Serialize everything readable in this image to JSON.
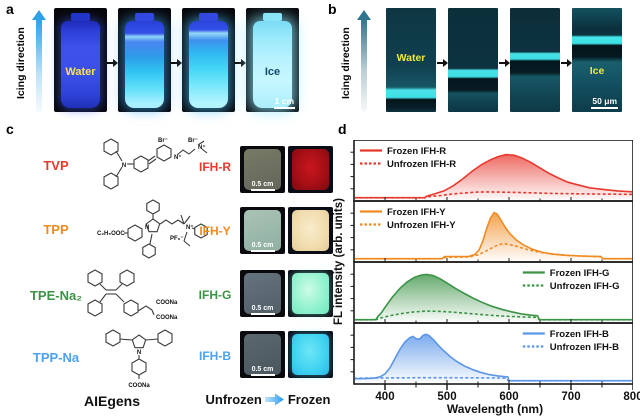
{
  "panels": {
    "a": {
      "panel_label": "a",
      "direction_label": "Icing direction",
      "water_label": "Water",
      "ice_label": "Ice",
      "scale_bar": "1 cm"
    },
    "b": {
      "panel_label": "b",
      "direction_label": "Icing direction",
      "water_label": "Water",
      "ice_label": "Ice",
      "scale_bar": "50 μm"
    },
    "c": {
      "panel_label": "c",
      "rows": [
        {
          "aiegen": "TVP",
          "ifh": "IFH-R",
          "color": "#e8392f",
          "ann": [
            "N",
            "Br⁻",
            "N⁺",
            "Br⁻",
            "N⁺"
          ],
          "scale_bar": "0.5 cm"
        },
        {
          "aiegen": "TPP",
          "ifh": "IFH-Y",
          "color": "#f08b22",
          "ann": [
            "C₂H₅OOC",
            "N",
            "PF₆⁻",
            "N⁺"
          ],
          "scale_bar": "0.5 cm"
        },
        {
          "aiegen": "TPE-Na₂",
          "ifh": "IFH-G",
          "color": "#3b9346",
          "ann": [
            "COONa",
            "COONa"
          ],
          "scale_bar": "0.5 cm"
        },
        {
          "aiegen": "TPP-Na",
          "ifh": "IFH-B",
          "color": "#4da2f0",
          "ann": [
            "N",
            "COONa"
          ],
          "scale_bar": "0.5 cm"
        }
      ],
      "aiegens_label": "AIEgens",
      "unfrozen_label": "Unfrozen",
      "frozen_label": "Frozen"
    },
    "d": {
      "panel_label": "d",
      "ylabel": "FL intensity (arb. units)",
      "xlabel": "Wavelength (nm)"
    }
  },
  "chart_data": {
    "type": "line",
    "xlabel": "Wavelength (nm)",
    "ylabel": "FL intensity (arb. units)",
    "x_range": [
      350,
      800
    ],
    "xticks": [
      400,
      500,
      600,
      700,
      800
    ],
    "grid": false,
    "subplots": [
      {
        "color": "#e8392f",
        "legend_pos": "left",
        "peak_nm": 600,
        "series": [
          {
            "name": "Frozen IFH-R",
            "style": "solid",
            "fill": true,
            "points": [
              [
                350,
                0.005
              ],
              [
                464,
                0.005
              ],
              [
                468,
                0.04
              ],
              [
                480,
                0.08
              ],
              [
                495,
                0.14
              ],
              [
                510,
                0.24
              ],
              [
                525,
                0.37
              ],
              [
                540,
                0.52
              ],
              [
                555,
                0.65
              ],
              [
                570,
                0.75
              ],
              [
                582,
                0.81
              ],
              [
                595,
                0.85
              ],
              [
                608,
                0.84
              ],
              [
                620,
                0.79
              ],
              [
                635,
                0.7
              ],
              [
                650,
                0.59
              ],
              [
                665,
                0.48
              ],
              [
                680,
                0.39
              ],
              [
                695,
                0.31
              ],
              [
                710,
                0.26
              ],
              [
                730,
                0.2
              ],
              [
                750,
                0.17
              ],
              [
                775,
                0.14
              ],
              [
                800,
                0.12
              ]
            ]
          },
          {
            "name": "Unfrozen IFH-R",
            "style": "dashed",
            "fill": false,
            "points": [
              [
                350,
                0.004
              ],
              [
                464,
                0.004
              ],
              [
                470,
                0.025
              ],
              [
                490,
                0.05
              ],
              [
                510,
                0.08
              ],
              [
                530,
                0.1
              ],
              [
                548,
                0.115
              ],
              [
                565,
                0.12
              ],
              [
                585,
                0.115
              ],
              [
                610,
                0.11
              ],
              [
                640,
                0.1
              ],
              [
                670,
                0.09
              ],
              [
                700,
                0.085
              ],
              [
                740,
                0.078
              ],
              [
                800,
                0.07
              ]
            ]
          }
        ]
      },
      {
        "color": "#f08b22",
        "legend_pos": "left",
        "peak_nm": 577,
        "series": [
          {
            "name": "Frozen IFH-Y",
            "style": "solid",
            "fill": true,
            "points": [
              [
                350,
                0.005
              ],
              [
                492,
                0.005
              ],
              [
                496,
                0.05
              ],
              [
                535,
                0.05
              ],
              [
                545,
                0.09
              ],
              [
                552,
                0.18
              ],
              [
                558,
                0.36
              ],
              [
                564,
                0.6
              ],
              [
                570,
                0.8
              ],
              [
                576,
                0.91
              ],
              [
                581,
                0.88
              ],
              [
                587,
                0.76
              ],
              [
                594,
                0.62
              ],
              [
                602,
                0.49
              ],
              [
                612,
                0.37
              ],
              [
                624,
                0.27
              ],
              [
                638,
                0.19
              ],
              [
                654,
                0.13
              ],
              [
                672,
                0.095
              ],
              [
                692,
                0.072
              ],
              [
                715,
                0.058
              ],
              [
                748,
                0.048
              ],
              [
                752,
                0.005
              ],
              [
                800,
                0.005
              ]
            ]
          },
          {
            "name": "Unfrozen IFH-Y",
            "style": "dashed",
            "fill": false,
            "points": [
              [
                350,
                0.004
              ],
              [
                492,
                0.004
              ],
              [
                498,
                0.035
              ],
              [
                535,
                0.04
              ],
              [
                550,
                0.08
              ],
              [
                562,
                0.15
              ],
              [
                574,
                0.23
              ],
              [
                584,
                0.285
              ],
              [
                592,
                0.3
              ],
              [
                602,
                0.28
              ],
              [
                615,
                0.24
              ],
              [
                630,
                0.185
              ],
              [
                648,
                0.135
              ],
              [
                668,
                0.1
              ],
              [
                690,
                0.075
              ],
              [
                715,
                0.058
              ],
              [
                748,
                0.045
              ],
              [
                752,
                0.004
              ],
              [
                800,
                0.004
              ]
            ]
          }
        ]
      },
      {
        "color": "#3b9346",
        "legend_pos": "right",
        "peak_nm": 465,
        "series": [
          {
            "name": "Frozen IFH-G",
            "style": "solid",
            "fill": true,
            "points": [
              [
                350,
                0.005
              ],
              [
                385,
                0.005
              ],
              [
                388,
                0.06
              ],
              [
                394,
                0.14
              ],
              [
                402,
                0.28
              ],
              [
                412,
                0.45
              ],
              [
                424,
                0.62
              ],
              [
                436,
                0.75
              ],
              [
                448,
                0.84
              ],
              [
                458,
                0.88
              ],
              [
                467,
                0.895
              ],
              [
                478,
                0.87
              ],
              [
                490,
                0.8
              ],
              [
                502,
                0.71
              ],
              [
                515,
                0.61
              ],
              [
                528,
                0.52
              ],
              [
                542,
                0.43
              ],
              [
                556,
                0.35
              ],
              [
                572,
                0.27
              ],
              [
                588,
                0.21
              ],
              [
                604,
                0.16
              ],
              [
                620,
                0.12
              ],
              [
                636,
                0.095
              ],
              [
                646,
                0.085
              ],
              [
                649,
                0.005
              ],
              [
                800,
                0.005
              ]
            ]
          },
          {
            "name": "Unfrozen IFH-G",
            "style": "dashed",
            "fill": false,
            "points": [
              [
                350,
                0.004
              ],
              [
                385,
                0.004
              ],
              [
                390,
                0.03
              ],
              [
                400,
                0.06
              ],
              [
                412,
                0.095
              ],
              [
                428,
                0.13
              ],
              [
                444,
                0.155
              ],
              [
                460,
                0.17
              ],
              [
                474,
                0.175
              ],
              [
                490,
                0.168
              ],
              [
                508,
                0.155
              ],
              [
                526,
                0.138
              ],
              [
                545,
                0.118
              ],
              [
                565,
                0.098
              ],
              [
                585,
                0.08
              ],
              [
                605,
                0.068
              ],
              [
                625,
                0.058
              ],
              [
                645,
                0.05
              ],
              [
                649,
                0.004
              ],
              [
                800,
                0.004
              ]
            ]
          }
        ]
      },
      {
        "color": "#5b96e8",
        "legend_pos": "right",
        "peak_nm": 465,
        "series": [
          {
            "name": "Frozen IFH-B",
            "style": "solid",
            "fill": true,
            "points": [
              [
                350,
                0.045
              ],
              [
                368,
                0.048
              ],
              [
                382,
                0.055
              ],
              [
                392,
                0.08
              ],
              [
                400,
                0.14
              ],
              [
                408,
                0.26
              ],
              [
                416,
                0.44
              ],
              [
                424,
                0.62
              ],
              [
                432,
                0.76
              ],
              [
                440,
                0.85
              ],
              [
                445,
                0.875
              ],
              [
                450,
                0.83
              ],
              [
                456,
                0.82
              ],
              [
                461,
                0.89
              ],
              [
                466,
                0.915
              ],
              [
                471,
                0.89
              ],
              [
                478,
                0.81
              ],
              [
                486,
                0.7
              ],
              [
                495,
                0.59
              ],
              [
                505,
                0.48
              ],
              [
                516,
                0.38
              ],
              [
                528,
                0.295
              ],
              [
                541,
                0.225
              ],
              [
                554,
                0.17
              ],
              [
                568,
                0.125
              ],
              [
                582,
                0.1
              ],
              [
                594,
                0.085
              ],
              [
                598,
                0.08
              ],
              [
                600,
                0.005
              ],
              [
                800,
                0.005
              ]
            ]
          },
          {
            "name": "Unfrozen IFH-B",
            "style": "dashed",
            "fill": false,
            "points": [
              [
                350,
                0.055
              ],
              [
                380,
                0.058
              ],
              [
                420,
                0.062
              ],
              [
                460,
                0.065
              ],
              [
                500,
                0.065
              ],
              [
                540,
                0.062
              ],
              [
                580,
                0.058
              ],
              [
                596,
                0.055
              ],
              [
                599,
                0.004
              ],
              [
                800,
                0.004
              ]
            ]
          }
        ]
      }
    ]
  }
}
